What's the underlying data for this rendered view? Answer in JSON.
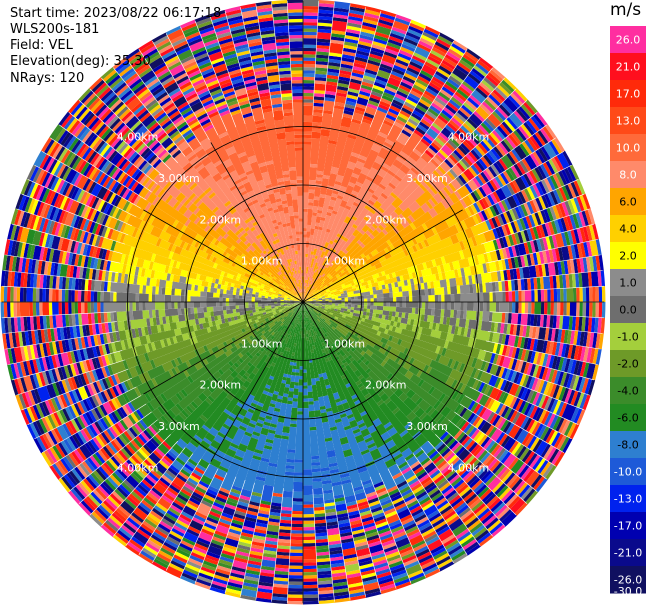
{
  "header": {
    "start_time": "Start time: 2023/08/22 06:17:18",
    "instrument": "WLS200s-181",
    "field": "Field: VEL",
    "elevation": "Elevation(deg): 35.30",
    "nrays": "NRays: 120"
  },
  "colorbar": {
    "unit": "m/s",
    "labels": [
      "26.0",
      "21.0",
      "17.0",
      "13.0",
      "10.0",
      "8.0",
      "6.0",
      "4.0",
      "2.0",
      "1.0",
      "0.0",
      "-1.0",
      "-2.0",
      "-4.0",
      "-6.0",
      "-8.0",
      "-10.0",
      "-13.0",
      "-17.0",
      "-21.0",
      "-26.0",
      "-30.0"
    ],
    "colors": [
      "#ff2ea0",
      "#ff0f1e",
      "#ff2a0a",
      "#ff4a18",
      "#ff6a3a",
      "#ff8a6a",
      "#ffa500",
      "#ffd000",
      "#ffff00",
      "#8c8c8c",
      "#6e6e6e",
      "#a4cf3c",
      "#6e9a28",
      "#3b8c2a",
      "#228b22",
      "#2e7fd0",
      "#1e5ad8",
      "#0022ee",
      "#0000b0",
      "#0a0a8c",
      "#101060"
    ]
  },
  "chart_data": {
    "type": "ppi",
    "field": "VEL",
    "nrays": 120,
    "range_rings_km": [
      "1.00km",
      "2.00km",
      "3.00km",
      "4.00km"
    ],
    "max_range_km": 5.15,
    "wind_pattern": {
      "positive_direction": "north",
      "negative_direction": "south",
      "zero_line": "west-east",
      "near_range_max_ms": 6,
      "far_range_max_ms": 10,
      "noise_beyond_km": 3.3
    }
  }
}
